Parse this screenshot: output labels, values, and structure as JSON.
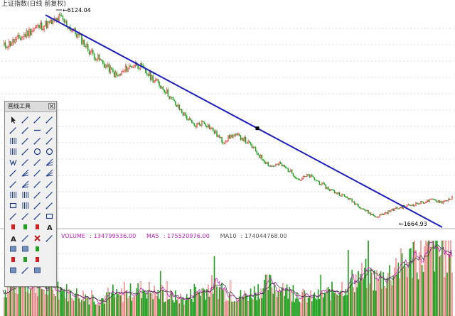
{
  "chart_data": {
    "type": "candlestick",
    "title": "上证指数(日线 前复权)",
    "annotations": [
      {
        "label": "6124.04",
        "kind": "high"
      },
      {
        "label": "1664.93",
        "kind": "low"
      }
    ],
    "trendline": {
      "from": 6124.04,
      "to": 1664.93,
      "color": "#2020c0"
    },
    "close_series": [
      5480,
      5580,
      5700,
      5850,
      5950,
      6000,
      6124,
      5900,
      5700,
      5400,
      5200,
      5000,
      4800,
      5000,
      5100,
      4900,
      4700,
      4500,
      4200,
      3950,
      3700,
      3800,
      3600,
      3350,
      3500,
      3450,
      3250,
      3000,
      2800,
      2850,
      2700,
      2500,
      2600,
      2450,
      2300,
      2200,
      2100,
      1950,
      1800,
      1664.93,
      1750,
      1850,
      1900,
      1950,
      2000,
      2050,
      2000,
      2100
    ],
    "volume": {
      "label": "VOLUME",
      "value": "134799536.00",
      "ma5_label": "MA5",
      "ma5_value": "175520976.00",
      "ma10_label": "MA10",
      "ma10_value": "174044768.00",
      "series": [
        0.35,
        0.4,
        0.42,
        0.45,
        0.38,
        0.32,
        0.36,
        0.3,
        0.28,
        0.25,
        0.22,
        0.24,
        0.26,
        0.3,
        0.34,
        0.36,
        0.3,
        0.27,
        0.25,
        0.22,
        0.3,
        0.35,
        0.4,
        0.32,
        0.28,
        0.26,
        0.3,
        0.38,
        0.42,
        0.35,
        0.32,
        0.28,
        0.24,
        0.26,
        0.3,
        0.36,
        0.42,
        0.5,
        0.55,
        0.48,
        0.52,
        0.6,
        0.68,
        0.75,
        0.82,
        0.88,
        0.8,
        0.85
      ]
    },
    "colors": {
      "up": "#e02020",
      "down": "#20a020",
      "trendline": "#2020c0",
      "ma5": "#c020c0",
      "grid": "#bfbfbf"
    }
  },
  "toolbox": {
    "title": "画线工具",
    "tools": [
      "cursor-icon",
      "line-segment-icon",
      "straight-line-icon",
      "ray-icon",
      "extend-line-icon",
      "arrow-line-icon",
      "horizontal-line-icon",
      "parallel-arrows-icon",
      "vertical-lines-icon",
      "price-channel-icon",
      "parallel-channel-icon",
      "linear-regression-icon",
      "period-lines-icon",
      "arc-icon",
      "circle-icon",
      "target-circle-icon",
      "w-pattern-icon",
      "triangle-pattern-icon",
      "wedge-icon",
      "fork-icon",
      "head-shoulders-icon",
      "fan-lines-icon",
      "angle-lines-icon",
      "gann-fan-icon",
      "fib-retracement-icon",
      "fib-fan-icon",
      "fib-arc-icon",
      "fib-extension-icon",
      "time-cycle-icon",
      "fib-time-icon",
      "ratio-lines-icon",
      "percent-lines-icon",
      "box-icon",
      "barcode-icon",
      "equal-lines-icon",
      "angle-icon",
      "measure-icon",
      "arrow-down-icon",
      "triangle-down-icon",
      "rectangle-icon",
      "arrow-up-red-icon",
      "arrow-down-green-icon",
      "arrow-down-red-icon",
      "text-a-icon",
      "text-a-with-arrow-icon",
      "eraser-icon",
      "delete-x-icon",
      "hide-icon",
      "layer-blue-icon",
      "layer-grey-icon",
      "layer-green-icon",
      "blank-tool-icon",
      "flag-up-red-icon",
      "flag-t-green-icon",
      "flag-down-red-icon",
      "blank-tool-icon",
      "stack-grey-icon",
      "zoom-icon",
      "stack-plus-icon",
      "blank-tool-icon"
    ]
  }
}
